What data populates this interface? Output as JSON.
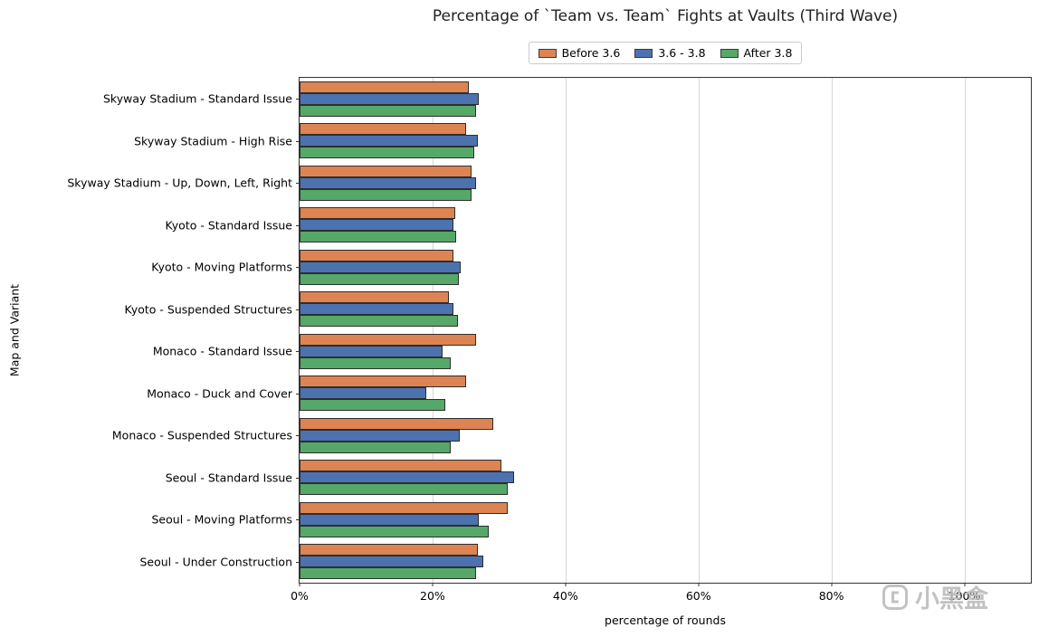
{
  "chart_data": {
    "type": "bar",
    "orientation": "horizontal",
    "title": "Percentage of `Team vs. Team` Fights at Vaults (Third Wave)",
    "xlabel": "percentage of rounds",
    "ylabel": "Map and Variant",
    "xlim": [
      0,
      110
    ],
    "xticks": [
      0,
      20,
      40,
      60,
      80,
      100
    ],
    "xtick_labels": [
      "0%",
      "20%",
      "40%",
      "60%",
      "80%",
      "100%"
    ],
    "grid": true,
    "legend_position": "top-center",
    "categories": [
      "Skyway Stadium - Standard Issue",
      "Skyway Stadium - High Rise",
      "Skyway Stadium - Up, Down, Left, Right",
      "Kyoto - Standard Issue",
      "Kyoto - Moving Platforms",
      "Kyoto - Suspended Structures",
      "Monaco - Standard Issue",
      "Monaco - Duck and Cover",
      "Monaco - Suspended Structures",
      "Seoul - Standard Issue",
      "Seoul - Moving Platforms",
      "Seoul - Under Construction"
    ],
    "series": [
      {
        "name": "Before 3.6",
        "color": "#dd8452",
        "values": [
          25.5,
          25.0,
          25.8,
          23.4,
          23.2,
          22.4,
          26.6,
          25.1,
          29.2,
          30.3,
          31.3,
          26.8
        ]
      },
      {
        "name": "3.6 - 3.8",
        "color": "#4c72b0",
        "values": [
          27.0,
          26.8,
          26.5,
          23.2,
          24.3,
          23.2,
          21.5,
          19.1,
          24.1,
          32.2,
          26.9,
          27.7
        ]
      },
      {
        "name": "After 3.8",
        "color": "#55a868",
        "values": [
          26.5,
          26.3,
          25.9,
          23.5,
          24.0,
          23.8,
          22.8,
          21.9,
          22.7,
          31.3,
          28.4,
          26.5
        ]
      }
    ],
    "bar_edge_color": "#2e2e2e"
  },
  "watermark": {
    "text": "小黑盒"
  }
}
